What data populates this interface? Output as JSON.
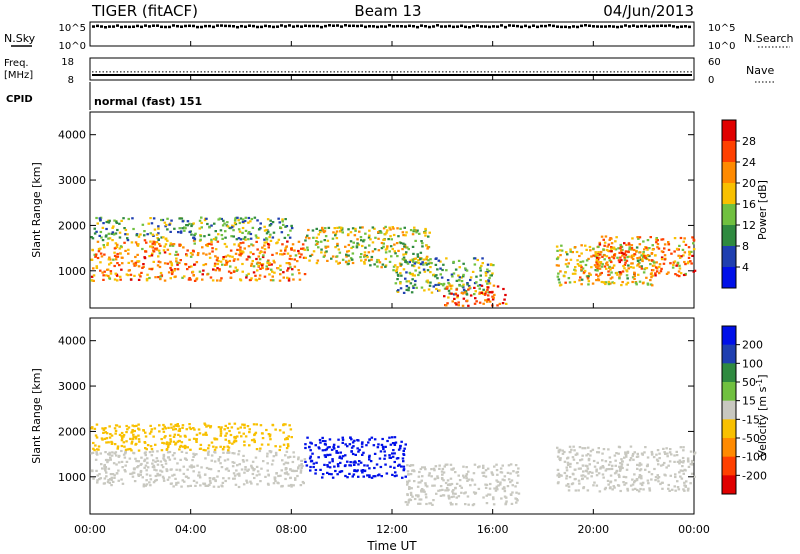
{
  "header": {
    "station": "TIGER (fitACF)",
    "beam": "Beam 13",
    "date": "04/Jun/2013"
  },
  "noise_panel": {
    "left_label": "N.Sky",
    "right_label": "N.Search",
    "tick_top": "10^5",
    "tick_bottom": "10^0"
  },
  "freq_panel": {
    "left_label_line1": "Freq.",
    "left_label_line2": "[MHz]",
    "left_ticks": [
      "18",
      "8"
    ],
    "right_ticks": [
      "60",
      "0"
    ],
    "right_label": "Nave",
    "freq_value_mhz": 10.3,
    "nave_value": 22
  },
  "cpid": {
    "label": "CPID",
    "value": "normal (fast) 151"
  },
  "time_axis": {
    "label": "Time UT",
    "ticks": [
      "00:00",
      "04:00",
      "08:00",
      "12:00",
      "16:00",
      "20:00",
      "00:00"
    ],
    "range_hours": [
      0,
      24
    ]
  },
  "chart_data": [
    {
      "type": "heatmap",
      "panel": "power",
      "ylabel": "Slant Range [km]",
      "ylim": [
        180,
        4500
      ],
      "yticks": [
        1000,
        2000,
        3000,
        4000
      ],
      "colorbar_label": "Power [dB]",
      "colorbar_ticks": [
        "28",
        "24",
        "20",
        "16",
        "12",
        "8",
        "4"
      ],
      "colorbar_colors": [
        "#e00000",
        "#ff4000",
        "#ff8a00",
        "#f8c000",
        "#70c040",
        "#2f8a40",
        "#1f3fb0",
        "#0010e8"
      ],
      "scatter_bands": [
        {
          "t0": 0.0,
          "t1": 8.5,
          "r0": 800,
          "r1": 1700,
          "level": 22
        },
        {
          "t0": 0.0,
          "t1": 8.0,
          "r0": 1700,
          "r1": 2200,
          "level": 12
        },
        {
          "t0": 8.5,
          "t1": 13.5,
          "r0": 1100,
          "r1": 2000,
          "level": 16
        },
        {
          "t0": 12.0,
          "t1": 16.0,
          "r0": 500,
          "r1": 1300,
          "level": 12
        },
        {
          "t0": 14.0,
          "t1": 16.5,
          "r0": 250,
          "r1": 700,
          "level": 26
        },
        {
          "t0": 18.5,
          "t1": 22.5,
          "r0": 700,
          "r1": 1600,
          "level": 18
        },
        {
          "t0": 20.0,
          "t1": 24.0,
          "r0": 900,
          "r1": 1800,
          "level": 22
        }
      ]
    },
    {
      "type": "heatmap",
      "panel": "velocity",
      "ylabel": "Slant Range [km]",
      "ylim": [
        180,
        4500
      ],
      "yticks": [
        1000,
        2000,
        3000,
        4000
      ],
      "colorbar_label": "Velocity [m s^-1]",
      "colorbar_ticks": [
        "200",
        "100",
        "50",
        "15",
        "-15",
        "-50",
        "-100",
        "-200"
      ],
      "colorbar_colors": [
        "#0010e8",
        "#1f3fb0",
        "#2f8a40",
        "#70c040",
        "#c8c8c0",
        "#f8c000",
        "#ff8a00",
        "#ff4000",
        "#e00000"
      ],
      "scatter_bands": [
        {
          "t0": 0.0,
          "t1": 8.5,
          "r0": 800,
          "r1": 1600,
          "level": 0
        },
        {
          "t0": 0.0,
          "t1": 8.0,
          "r0": 1600,
          "r1": 2200,
          "level": -40
        },
        {
          "t0": 8.5,
          "t1": 12.5,
          "r0": 1000,
          "r1": 1900,
          "level": 220
        },
        {
          "t0": 12.5,
          "t1": 17.0,
          "r0": 400,
          "r1": 1300,
          "level": 0
        },
        {
          "t0": 18.5,
          "t1": 24.0,
          "r0": 700,
          "r1": 1700,
          "level": 0
        }
      ]
    }
  ]
}
